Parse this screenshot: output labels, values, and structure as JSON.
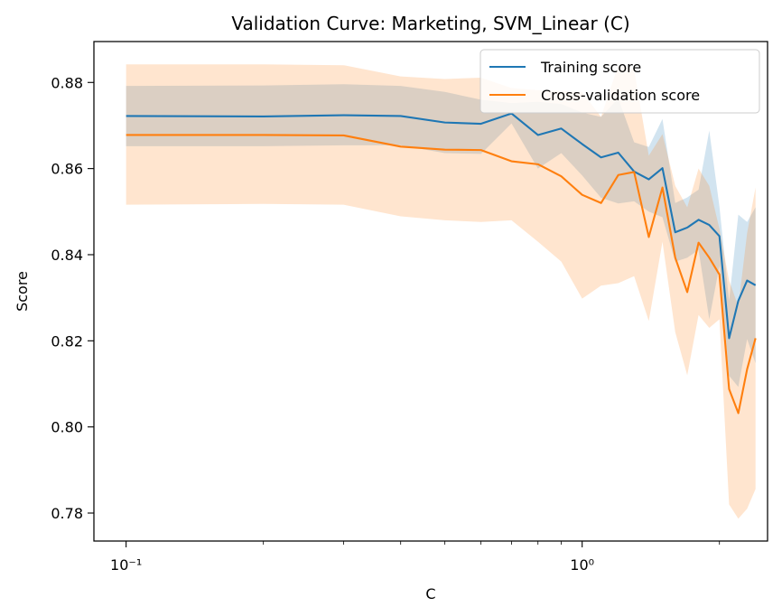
{
  "chart_data": {
    "type": "line",
    "title": "Validation Curve: Marketing, SVM_Linear (C)",
    "xlabel": "C",
    "ylabel": "Score",
    "xscale": "log",
    "xlim": [
      0.085,
      2.55
    ],
    "ylim": [
      0.7735,
      0.8895
    ],
    "grid": false,
    "legend_position": "top-right",
    "x_major_ticks": [
      0.1,
      1.0
    ],
    "x_tick_labels": [
      "10⁻¹",
      "10⁰"
    ],
    "x_minor_ticks": [
      0.2,
      0.3,
      0.4,
      0.5,
      0.6,
      0.7,
      0.8,
      0.9,
      2.0
    ],
    "y_ticks": [
      0.78,
      0.8,
      0.82,
      0.84,
      0.86,
      0.88
    ],
    "y_tick_labels": [
      "0.78",
      "0.80",
      "0.82",
      "0.84",
      "0.86",
      "0.88"
    ],
    "x": [
      0.1,
      0.2,
      0.3,
      0.4,
      0.5,
      0.6,
      0.7,
      0.8,
      0.9,
      1.0,
      1.1,
      1.2,
      1.3,
      1.4,
      1.5,
      1.6,
      1.7,
      1.8,
      1.9,
      2.0,
      2.1,
      2.2,
      2.3,
      2.4
    ],
    "series": [
      {
        "name": "Training score",
        "color": "#1f77b4",
        "values": [
          0.8722,
          0.8721,
          0.8724,
          0.8722,
          0.8707,
          0.8704,
          0.8728,
          0.8678,
          0.8693,
          0.8657,
          0.8626,
          0.8637,
          0.8593,
          0.8575,
          0.8601,
          0.8452,
          0.8463,
          0.8481,
          0.8469,
          0.8443,
          0.8206,
          0.8293,
          0.834,
          0.8329
        ],
        "band_upper": [
          0.8792,
          0.8793,
          0.8796,
          0.8792,
          0.8778,
          0.876,
          0.8752,
          0.8755,
          0.875,
          0.873,
          0.872,
          0.8763,
          0.8661,
          0.865,
          0.8715,
          0.852,
          0.8533,
          0.8551,
          0.8688,
          0.8512,
          0.8293,
          0.8493,
          0.8476,
          0.851
        ],
        "band_lower": [
          0.8652,
          0.8652,
          0.8654,
          0.8654,
          0.8636,
          0.8634,
          0.8705,
          0.86,
          0.8636,
          0.8584,
          0.8532,
          0.8519,
          0.8524,
          0.85,
          0.8487,
          0.8384,
          0.8393,
          0.8411,
          0.825,
          0.8374,
          0.8119,
          0.8093,
          0.8204,
          0.8148
        ]
      },
      {
        "name": "Cross-validation score",
        "color": "#ff7f0e",
        "values": [
          0.8678,
          0.8678,
          0.8677,
          0.8651,
          0.8644,
          0.8643,
          0.8617,
          0.861,
          0.8582,
          0.8539,
          0.852,
          0.8585,
          0.8592,
          0.8441,
          0.8556,
          0.8393,
          0.8313,
          0.8428,
          0.8393,
          0.8354,
          0.8088,
          0.8032,
          0.8134,
          0.8206
        ],
        "band_upper": [
          0.8842,
          0.8842,
          0.884,
          0.8814,
          0.8808,
          0.8811,
          0.8787,
          0.8782,
          0.878,
          0.8778,
          0.872,
          0.884,
          0.883,
          0.863,
          0.868,
          0.856,
          0.851,
          0.86,
          0.856,
          0.846,
          0.834,
          0.828,
          0.845,
          0.8556
        ],
        "band_lower": [
          0.8516,
          0.8518,
          0.8516,
          0.8489,
          0.848,
          0.8476,
          0.848,
          0.843,
          0.8384,
          0.8298,
          0.8328,
          0.8334,
          0.835,
          0.8246,
          0.843,
          0.822,
          0.812,
          0.826,
          0.823,
          0.825,
          0.782,
          0.7787,
          0.781,
          0.7856
        ]
      }
    ]
  }
}
